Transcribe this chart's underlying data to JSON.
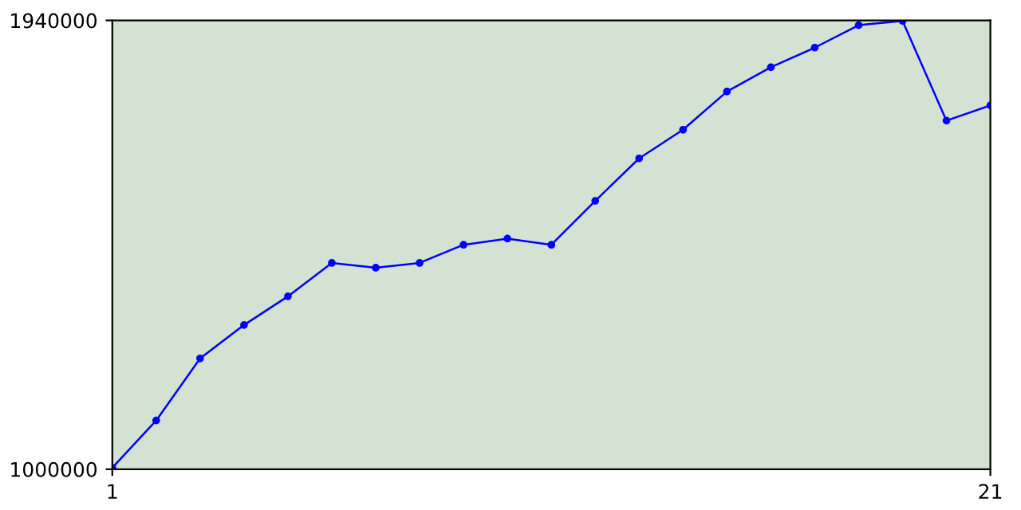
{
  "chart_data": {
    "type": "line",
    "x": [
      1,
      2,
      3,
      4,
      5,
      6,
      7,
      8,
      9,
      10,
      11,
      12,
      13,
      14,
      15,
      16,
      17,
      18,
      19,
      20,
      21
    ],
    "series": [
      {
        "color": "#0000ff",
        "values": [
          1003000,
          1102000,
          1232000,
          1302000,
          1362000,
          1432000,
          1422000,
          1432000,
          1470000,
          1483000,
          1470000,
          1562000,
          1651000,
          1711000,
          1791000,
          1842000,
          1883000,
          1930000,
          1939000,
          1730000,
          1762000
        ]
      }
    ],
    "xlim": [
      1,
      21
    ],
    "xticks": [
      1,
      21
    ],
    "ylim": [
      1000000,
      1940000
    ],
    "yticks": [
      1000000,
      1940000
    ],
    "marker": "circle",
    "line_style": "solid",
    "grid": false,
    "legend": false
  }
}
